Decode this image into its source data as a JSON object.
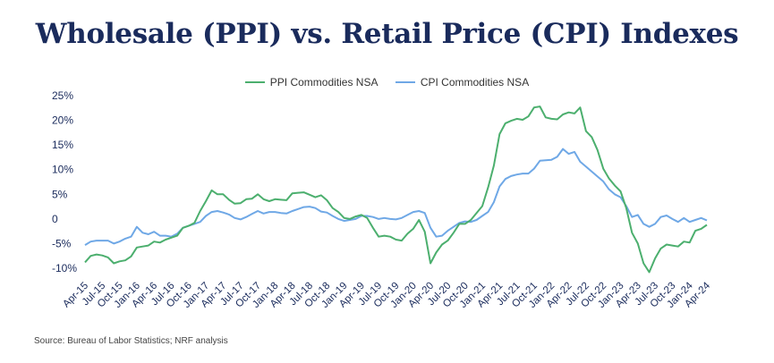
{
  "title": "Wholesale (PPI) vs. Retail Price (CPI) Indexes",
  "source": "Source: Bureau of Labor Statistics; NRF analysis",
  "colors": {
    "ppi": "#4caf6e",
    "cpi": "#6fa8e6",
    "axis_text": "#1a2b5c"
  },
  "chart_data": {
    "type": "line",
    "title": "Wholesale (PPI) vs. Retail Price (CPI) Indexes",
    "xlabel": "",
    "ylabel": "",
    "ylim": [
      -10,
      25
    ],
    "yticks": [
      "25%",
      "20%",
      "15%",
      "10%",
      "5%",
      "0",
      "-5%",
      "-10%"
    ],
    "grid": false,
    "legend_position": "top-center",
    "x_tick_labels": [
      "Apr-15",
      "Jul-15",
      "Oct-15",
      "Jan-16",
      "Apr-16",
      "Jul-16",
      "Oct-16",
      "Jan-17",
      "Apr-17",
      "Jul-17",
      "Oct-17",
      "Jan-18",
      "Apr-18",
      "Jul-18",
      "Oct-18",
      "Jan-19",
      "Apr-19",
      "Jul-19",
      "Oct-19",
      "Jan-20",
      "Apr-20",
      "Jul-20",
      "Oct-20",
      "Jan-21",
      "Apr-21",
      "Jul-21",
      "Oct-21",
      "Jan-22",
      "Apr-22",
      "Jul-22",
      "Oct-22",
      "Jan-23",
      "Apr-23",
      "Jul-23",
      "Oct-23",
      "Jan-24",
      "Apr-24"
    ],
    "series": [
      {
        "name": "PPI Commodities NSA",
        "color": "#4caf6e",
        "values": [
          -8.8,
          -7.5,
          -7.2,
          -7.4,
          -7.8,
          -9.0,
          -8.6,
          -8.4,
          -7.6,
          -5.8,
          -5.6,
          -5.4,
          -4.6,
          -4.8,
          -4.2,
          -3.8,
          -3.4,
          -1.8,
          -1.4,
          -0.8,
          1.6,
          3.6,
          5.8,
          5.0,
          5.0,
          3.9,
          3.1,
          3.2,
          4.0,
          4.1,
          5.0,
          4.0,
          3.6,
          4.0,
          3.9,
          3.8,
          5.2,
          5.3,
          5.4,
          4.9,
          4.4,
          4.8,
          3.8,
          2.2,
          1.4,
          0.2,
          0.0,
          0.5,
          0.8,
          0.2,
          -1.8,
          -3.6,
          -3.4,
          -3.6,
          -4.2,
          -4.4,
          -3.0,
          -2.0,
          -0.2,
          -2.6,
          -9.0,
          -6.8,
          -5.2,
          -4.4,
          -2.8,
          -1.0,
          -1.0,
          -0.2,
          1.2,
          2.6,
          6.4,
          10.8,
          17.2,
          19.4,
          19.9,
          20.3,
          20.1,
          20.8,
          22.6,
          22.8,
          20.6,
          20.3,
          20.2,
          21.2,
          21.6,
          21.4,
          22.6,
          17.8,
          16.6,
          14.0,
          10.2,
          8.2,
          6.8,
          5.6,
          2.2,
          -2.8,
          -5.0,
          -9.0,
          -10.8,
          -8.0,
          -6.0,
          -5.2,
          -5.4,
          -5.6,
          -4.6,
          -4.8,
          -2.4,
          -2.0,
          -1.2
        ]
      },
      {
        "name": "CPI Commodities NSA",
        "color": "#6fa8e6",
        "values": [
          -5.3,
          -4.6,
          -4.4,
          -4.4,
          -4.4,
          -5.0,
          -4.6,
          -4.0,
          -3.6,
          -1.6,
          -2.8,
          -3.1,
          -2.6,
          -3.4,
          -3.4,
          -3.6,
          -3.0,
          -1.8,
          -1.4,
          -1.0,
          -0.6,
          0.6,
          1.4,
          1.6,
          1.3,
          0.9,
          0.2,
          -0.1,
          0.4,
          1.0,
          1.6,
          1.1,
          1.4,
          1.4,
          1.2,
          1.1,
          1.6,
          2.0,
          2.4,
          2.5,
          2.2,
          1.5,
          1.3,
          0.6,
          0.0,
          -0.4,
          -0.2,
          0.0,
          0.6,
          0.6,
          0.4,
          0.0,
          0.2,
          0.0,
          -0.1,
          0.2,
          0.8,
          1.4,
          1.6,
          1.2,
          -1.8,
          -3.6,
          -3.4,
          -2.4,
          -1.6,
          -0.8,
          -0.5,
          -0.6,
          -0.2,
          0.6,
          1.4,
          3.4,
          6.6,
          8.1,
          8.7,
          9.0,
          9.2,
          9.2,
          10.2,
          11.8,
          11.9,
          12.0,
          12.6,
          14.2,
          13.2,
          13.6,
          11.6,
          10.6,
          9.6,
          8.6,
          7.6,
          6.0,
          5.0,
          4.4,
          2.6,
          0.4,
          0.8,
          -1.0,
          -1.6,
          -1.0,
          0.4,
          0.7,
          0.0,
          -0.6,
          0.2,
          -0.6,
          -0.2,
          0.2,
          -0.3
        ]
      }
    ]
  }
}
